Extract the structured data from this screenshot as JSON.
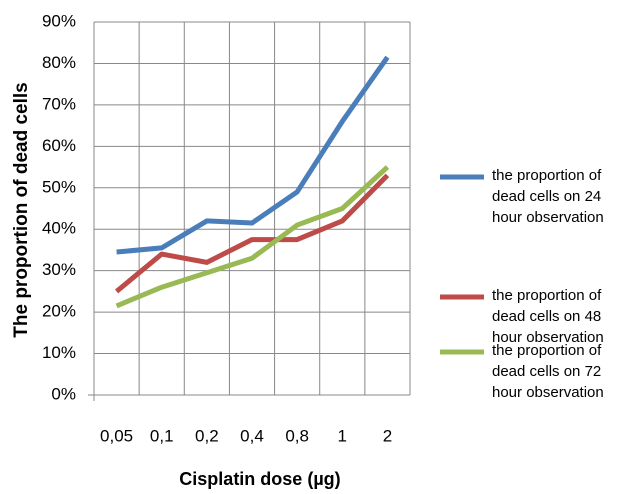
{
  "chart_data": {
    "type": "line",
    "x_label": "Cisplatin dose (µg)",
    "y_label": "The proportion of dead cells",
    "categories": [
      "0,05",
      "0,1",
      "0,2",
      "0,4",
      "0,8",
      "1",
      "2"
    ],
    "series": [
      {
        "name": "the proportion of dead cells on 24 hour observation",
        "color": "#4a7ebb",
        "values": [
          34.5,
          35.5,
          42,
          41.5,
          49,
          66,
          81.5
        ]
      },
      {
        "name": "the proportion of dead cells on 48 hour observation",
        "color": "#be4b48",
        "values": [
          25,
          34,
          32,
          37.5,
          37.5,
          42,
          53
        ]
      },
      {
        "name": "the proportion of dead cells on 72 hour observation",
        "color": "#98b954",
        "values": [
          21.5,
          26,
          29.5,
          33,
          41,
          45,
          55
        ]
      }
    ],
    "ylim": [
      0,
      90
    ],
    "yticks": [
      {
        "value": 0,
        "label": "0%"
      },
      {
        "value": 10,
        "label": "10%"
      },
      {
        "value": 20,
        "label": "20%"
      },
      {
        "value": 30,
        "label": "30%"
      },
      {
        "value": 40,
        "label": "40%"
      },
      {
        "value": 50,
        "label": "50%"
      },
      {
        "value": 60,
        "label": "60%"
      },
      {
        "value": 70,
        "label": "70%"
      },
      {
        "value": 80,
        "label": "80%"
      },
      {
        "value": 90,
        "label": "90%"
      }
    ],
    "grid": true,
    "legend": "right"
  }
}
